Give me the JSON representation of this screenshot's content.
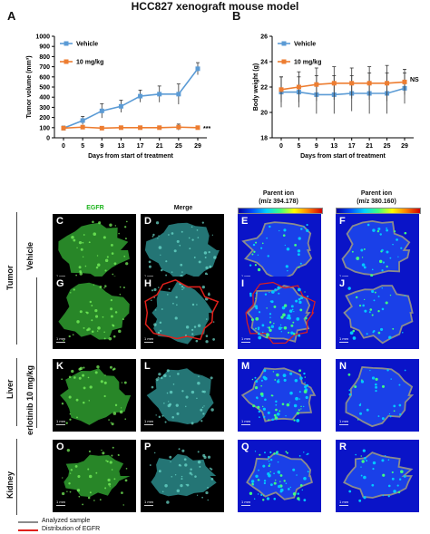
{
  "title": "HCC827 xenograft mouse model",
  "panel_a_letter": "A",
  "panel_b_letter": "B",
  "colors": {
    "vehicle": "#5b9bd5",
    "treated": "#ed7d31",
    "egfr_outline": "#e0201b",
    "analyzed_outline": "#8c8c8c",
    "stain": "#3fbf3f"
  },
  "chart_data": [
    {
      "type": "line",
      "ylabel": "Tumor volume (mm³)",
      "xlabel": "Days from start of treatment",
      "x": [
        0,
        5,
        9,
        13,
        17,
        21,
        25,
        29
      ],
      "ylim": [
        0,
        1000
      ],
      "yticks": [
        0,
        100,
        200,
        300,
        400,
        500,
        600,
        700,
        800,
        900,
        1000
      ],
      "legend_position": "top-left",
      "annotation": "***",
      "series": [
        {
          "name": "Vehicle",
          "values": [
            95,
            170,
            265,
            310,
            410,
            430,
            430,
            680
          ],
          "errors": [
            20,
            40,
            70,
            60,
            60,
            80,
            100,
            60
          ]
        },
        {
          "name": "10 mg/kg",
          "values": [
            95,
            105,
            95,
            100,
            100,
            100,
            105,
            100
          ],
          "errors": [
            10,
            10,
            10,
            10,
            10,
            10,
            30,
            10
          ]
        }
      ]
    },
    {
      "type": "line",
      "ylabel": "Body weight (g)",
      "xlabel": "Days from start of treatment",
      "x": [
        0,
        5,
        9,
        13,
        17,
        21,
        25,
        29
      ],
      "ylim": [
        18,
        26
      ],
      "yticks": [
        18,
        20,
        22,
        24,
        26
      ],
      "legend_position": "top-left",
      "annotation": "NS",
      "series": [
        {
          "name": "Vehicle",
          "values": [
            21.6,
            21.6,
            21.4,
            21.4,
            21.5,
            21.5,
            21.5,
            21.9
          ],
          "errors": [
            1.2,
            1.2,
            1.5,
            1.5,
            1.4,
            1.6,
            1.6,
            1.2
          ]
        },
        {
          "name": "10 mg/kg",
          "values": [
            21.8,
            22.0,
            22.2,
            22.3,
            22.3,
            22.3,
            22.3,
            22.4
          ],
          "errors": [
            1.0,
            1.2,
            1.3,
            1.3,
            1.2,
            1.3,
            1.4,
            1.0
          ]
        }
      ]
    }
  ],
  "micro": {
    "col_egfr": "EGFR",
    "col_merge": "Merge",
    "col_parent1_l1": "Parent ion",
    "col_parent1_l2": "(m/z 394.178)",
    "col_parent2_l1": "Parent ion",
    "col_parent2_l2": "(m/z 380.160)",
    "row_vehicle": "Vehicle",
    "row_tumor": "Tumor",
    "row_erlotinib": "erlotinib 10 mg/kg",
    "row_liver": "Liver",
    "row_kidney": "Kidney",
    "scale_text": "1 mm",
    "letters": [
      "C",
      "D",
      "E",
      "F",
      "G",
      "H",
      "I",
      "J",
      "K",
      "L",
      "M",
      "N",
      "O",
      "P",
      "Q",
      "R"
    ]
  },
  "bottom_legend": {
    "analyzed": "Analyzed sample",
    "distribution": "Distribution of EGFR"
  }
}
